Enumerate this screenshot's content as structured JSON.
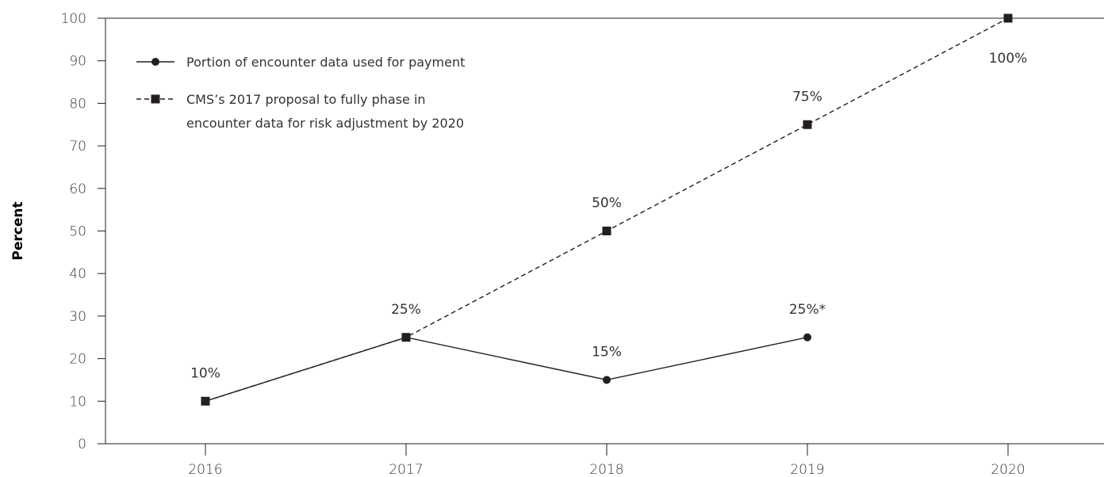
{
  "chart_data": {
    "type": "line",
    "title": "",
    "xlabel": "",
    "ylabel": "Percent",
    "ylim": [
      0,
      100
    ],
    "yticks": [
      0,
      10,
      20,
      30,
      40,
      50,
      60,
      70,
      80,
      90,
      100
    ],
    "x": [
      "2016",
      "2017",
      "2018",
      "2019",
      "2020"
    ],
    "grid": false,
    "legend_position": "top-left",
    "series": [
      {
        "name": "Portion of encounter data used for payment",
        "line_style": "solid",
        "marker": "circle",
        "color": "#231f20",
        "values": [
          10,
          25,
          15,
          25,
          null
        ]
      },
      {
        "name": "CMS’s 2017 proposal to fully phase in encounter data for risk adjustment by 2020",
        "line_style": "dashed",
        "marker": "square",
        "color": "#231f20",
        "values": [
          10,
          25,
          50,
          75,
          100
        ]
      }
    ],
    "legend_lines": [
      [
        "Portion of encounter data used for payment"
      ],
      [
        "CMS’s 2017 proposal to fully phase in",
        "encounter data for risk adjustment by 2020"
      ]
    ],
    "annotations": [
      {
        "x": "2016",
        "y": 10,
        "text": "10%"
      },
      {
        "x": "2017",
        "y": 25,
        "text": "25%"
      },
      {
        "x": "2018",
        "y": 15,
        "text": "15%"
      },
      {
        "x": "2019",
        "y": 25,
        "text": "25%*"
      },
      {
        "x": "2018",
        "y": 50,
        "text": "50%"
      },
      {
        "x": "2019",
        "y": 75,
        "text": "75%"
      },
      {
        "x": "2020",
        "y": 100,
        "text": "100%"
      }
    ]
  }
}
